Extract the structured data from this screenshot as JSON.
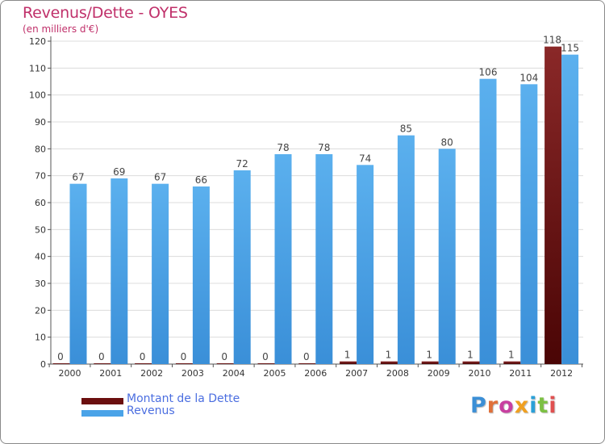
{
  "title": "Revenus/Dette - OYES",
  "subtitle": "(en milliers d'€)",
  "chart_data": {
    "type": "bar",
    "categories": [
      "2000",
      "2001",
      "2002",
      "2003",
      "2004",
      "2005",
      "2006",
      "2007",
      "2008",
      "2009",
      "2010",
      "2011",
      "2012"
    ],
    "series": [
      {
        "name": "Montant de la Dette",
        "values": [
          0,
          0,
          0,
          0,
          0,
          0,
          0,
          1,
          1,
          1,
          1,
          1,
          118
        ],
        "color": "#7a1a1a"
      },
      {
        "name": "Revenus",
        "values": [
          67,
          69,
          67,
          66,
          72,
          78,
          78,
          74,
          85,
          80,
          106,
          104,
          115
        ],
        "color": "#4aa3e8"
      }
    ],
    "ylim": [
      0,
      120
    ],
    "yticks": [
      0,
      10,
      20,
      30,
      40,
      50,
      60,
      70,
      80,
      90,
      100,
      110,
      120
    ],
    "grid": true,
    "legend": "bottom-left"
  },
  "legend": {
    "items": [
      {
        "label": "Montant de la Dette",
        "color": "#6b0f0f"
      },
      {
        "label": "Revenus",
        "color": "#4aa3e8"
      }
    ]
  },
  "logo": {
    "text": "Proxiti"
  }
}
